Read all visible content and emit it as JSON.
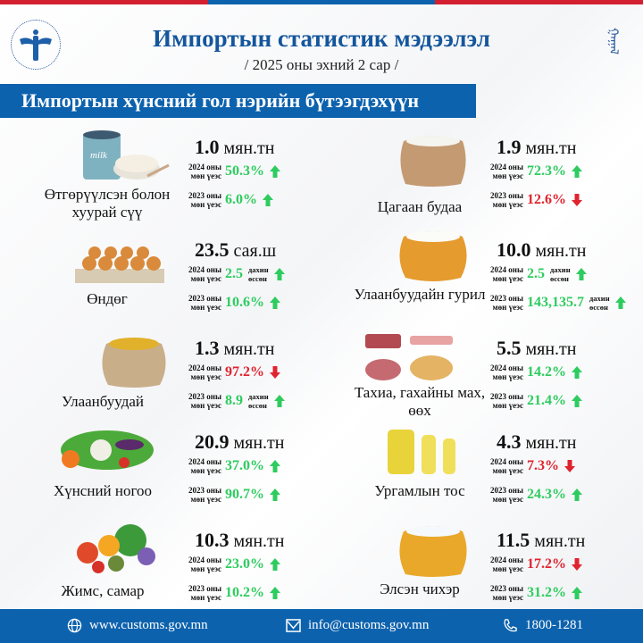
{
  "colors": {
    "brand_blue": "#0d62ad",
    "title_blue": "#14569c",
    "flag_red": "#d32030",
    "up_green": "#2ecc5f",
    "down_red": "#e0242f"
  },
  "header": {
    "title": "Импортын статистик мэдээлэл",
    "subtitle": "/ 2025 оны эхний 2 сар /",
    "logo_icon": "mongolian-customs-emblem",
    "script_text": "ᠭᠠᠭᠠᠯ"
  },
  "banner": {
    "text": "Импортын хүнсний гол нэрийн бүтээгдэхүүн"
  },
  "labels": {
    "y2024": "2024 оны\nмөн үеэс",
    "y2023": "2023 оны\nмөн үеэс",
    "times_grew": "дахин\nөссөн"
  },
  "items": [
    {
      "name": "Өтгөрүүлсэн болон хуурай сүү",
      "icon": "milk-powder-icon",
      "amount": "1.0",
      "unit": "мян.тн",
      "vs2024": {
        "value": "50.3%",
        "direction": "up",
        "suffix": ""
      },
      "vs2023": {
        "value": "6.0%",
        "direction": "up",
        "suffix": ""
      }
    },
    {
      "name": "Цагаан будаа",
      "icon": "rice-sack-icon",
      "amount": "1.9",
      "unit": "мян.тн",
      "vs2024": {
        "value": "72.3%",
        "direction": "up",
        "suffix": ""
      },
      "vs2023": {
        "value": "12.6%",
        "direction": "down",
        "suffix": ""
      }
    },
    {
      "name": "Өндөг",
      "icon": "egg-tray-icon",
      "amount": "23.5",
      "unit": "сая.ш",
      "vs2024": {
        "value": "2.5",
        "direction": "up",
        "suffix": "дахин\nөссөн"
      },
      "vs2023": {
        "value": "10.6%",
        "direction": "up",
        "suffix": ""
      }
    },
    {
      "name": "Улаанбуудайн гурил",
      "icon": "flour-sack-icon",
      "amount": "10.0",
      "unit": "мян.тн",
      "vs2024": {
        "value": "2.5",
        "direction": "up",
        "suffix": "дахин\nөссөн"
      },
      "vs2023": {
        "value": "143,135.7",
        "direction": "up",
        "suffix": "дахин\nөссөн"
      }
    },
    {
      "name": "Улаанбуудай",
      "icon": "wheat-sack-icon",
      "amount": "1.3",
      "unit": "мян.тн",
      "vs2024": {
        "value": "97.2%",
        "direction": "down",
        "suffix": ""
      },
      "vs2023": {
        "value": "8.9",
        "direction": "up",
        "suffix": "дахин\nөссөн"
      }
    },
    {
      "name": "Тахиа, гахайны мах, өөх",
      "icon": "meat-icon",
      "amount": "5.5",
      "unit": "мян.тн",
      "vs2024": {
        "value": "14.2%",
        "direction": "up",
        "suffix": ""
      },
      "vs2023": {
        "value": "21.4%",
        "direction": "up",
        "suffix": ""
      }
    },
    {
      "name": "Хүнсний ногоо",
      "icon": "vegetables-icon",
      "amount": "20.9",
      "unit": "мян.тн",
      "vs2024": {
        "value": "37.0%",
        "direction": "up",
        "suffix": ""
      },
      "vs2023": {
        "value": "90.7%",
        "direction": "up",
        "suffix": ""
      }
    },
    {
      "name": "Ургамлын тос",
      "icon": "oil-bottles-icon",
      "amount": "4.3",
      "unit": "мян.тн",
      "vs2024": {
        "value": "7.3%",
        "direction": "down",
        "suffix": ""
      },
      "vs2023": {
        "value": "24.3%",
        "direction": "up",
        "suffix": ""
      }
    },
    {
      "name": "Жимс, самар",
      "icon": "fruits-icon",
      "amount": "10.3",
      "unit": "мян.тн",
      "vs2024": {
        "value": "23.0%",
        "direction": "up",
        "suffix": ""
      },
      "vs2023": {
        "value": "10.2%",
        "direction": "up",
        "suffix": ""
      }
    },
    {
      "name": "Элсэн чихэр",
      "icon": "sugar-sack-icon",
      "amount": "11.5",
      "unit": "мян.тн",
      "vs2024": {
        "value": "17.2%",
        "direction": "down",
        "suffix": ""
      },
      "vs2023": {
        "value": "31.2%",
        "direction": "up",
        "suffix": ""
      }
    }
  ],
  "footer": {
    "website": "www.customs.gov.mn",
    "email": "info@customs.gov.mn",
    "phone": "1800-1281"
  }
}
